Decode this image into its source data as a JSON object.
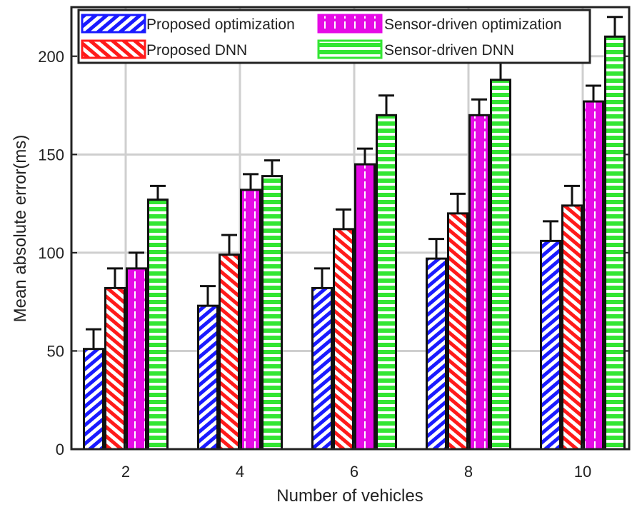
{
  "chart_data": {
    "type": "bar",
    "xlabel": "Number of vehicles",
    "ylabel": "Mean absolute error(ms)",
    "categories": [
      "2",
      "4",
      "6",
      "8",
      "10"
    ],
    "ylim": [
      0,
      225
    ],
    "yticks": [
      "0",
      "50",
      "100",
      "150",
      "200"
    ],
    "grid": true,
    "legend_position": "top",
    "series": [
      {
        "name": "Proposed optimization",
        "values": [
          51,
          73,
          82,
          97,
          106
        ],
        "errors": [
          10,
          10,
          10,
          10,
          10
        ],
        "color": "#1a1aff",
        "pattern": "diagonal-stripes"
      },
      {
        "name": "Proposed DNN",
        "values": [
          82,
          99,
          112,
          120,
          124
        ],
        "errors": [
          10,
          10,
          10,
          10,
          10
        ],
        "color": "#ff1a1a",
        "pattern": "diagonal-stripes"
      },
      {
        "name": "Sensor-driven optimization",
        "values": [
          92,
          132,
          145,
          170,
          177
        ],
        "errors": [
          8,
          8,
          8,
          8,
          8
        ],
        "color": "#e60ae6",
        "pattern": "vertical-lines"
      },
      {
        "name": "Sensor-driven DNN",
        "values": [
          127,
          139,
          170,
          188,
          210
        ],
        "errors": [
          7,
          8,
          10,
          12,
          10
        ],
        "color": "#33e633",
        "pattern": "horizontal-stripes"
      }
    ]
  }
}
